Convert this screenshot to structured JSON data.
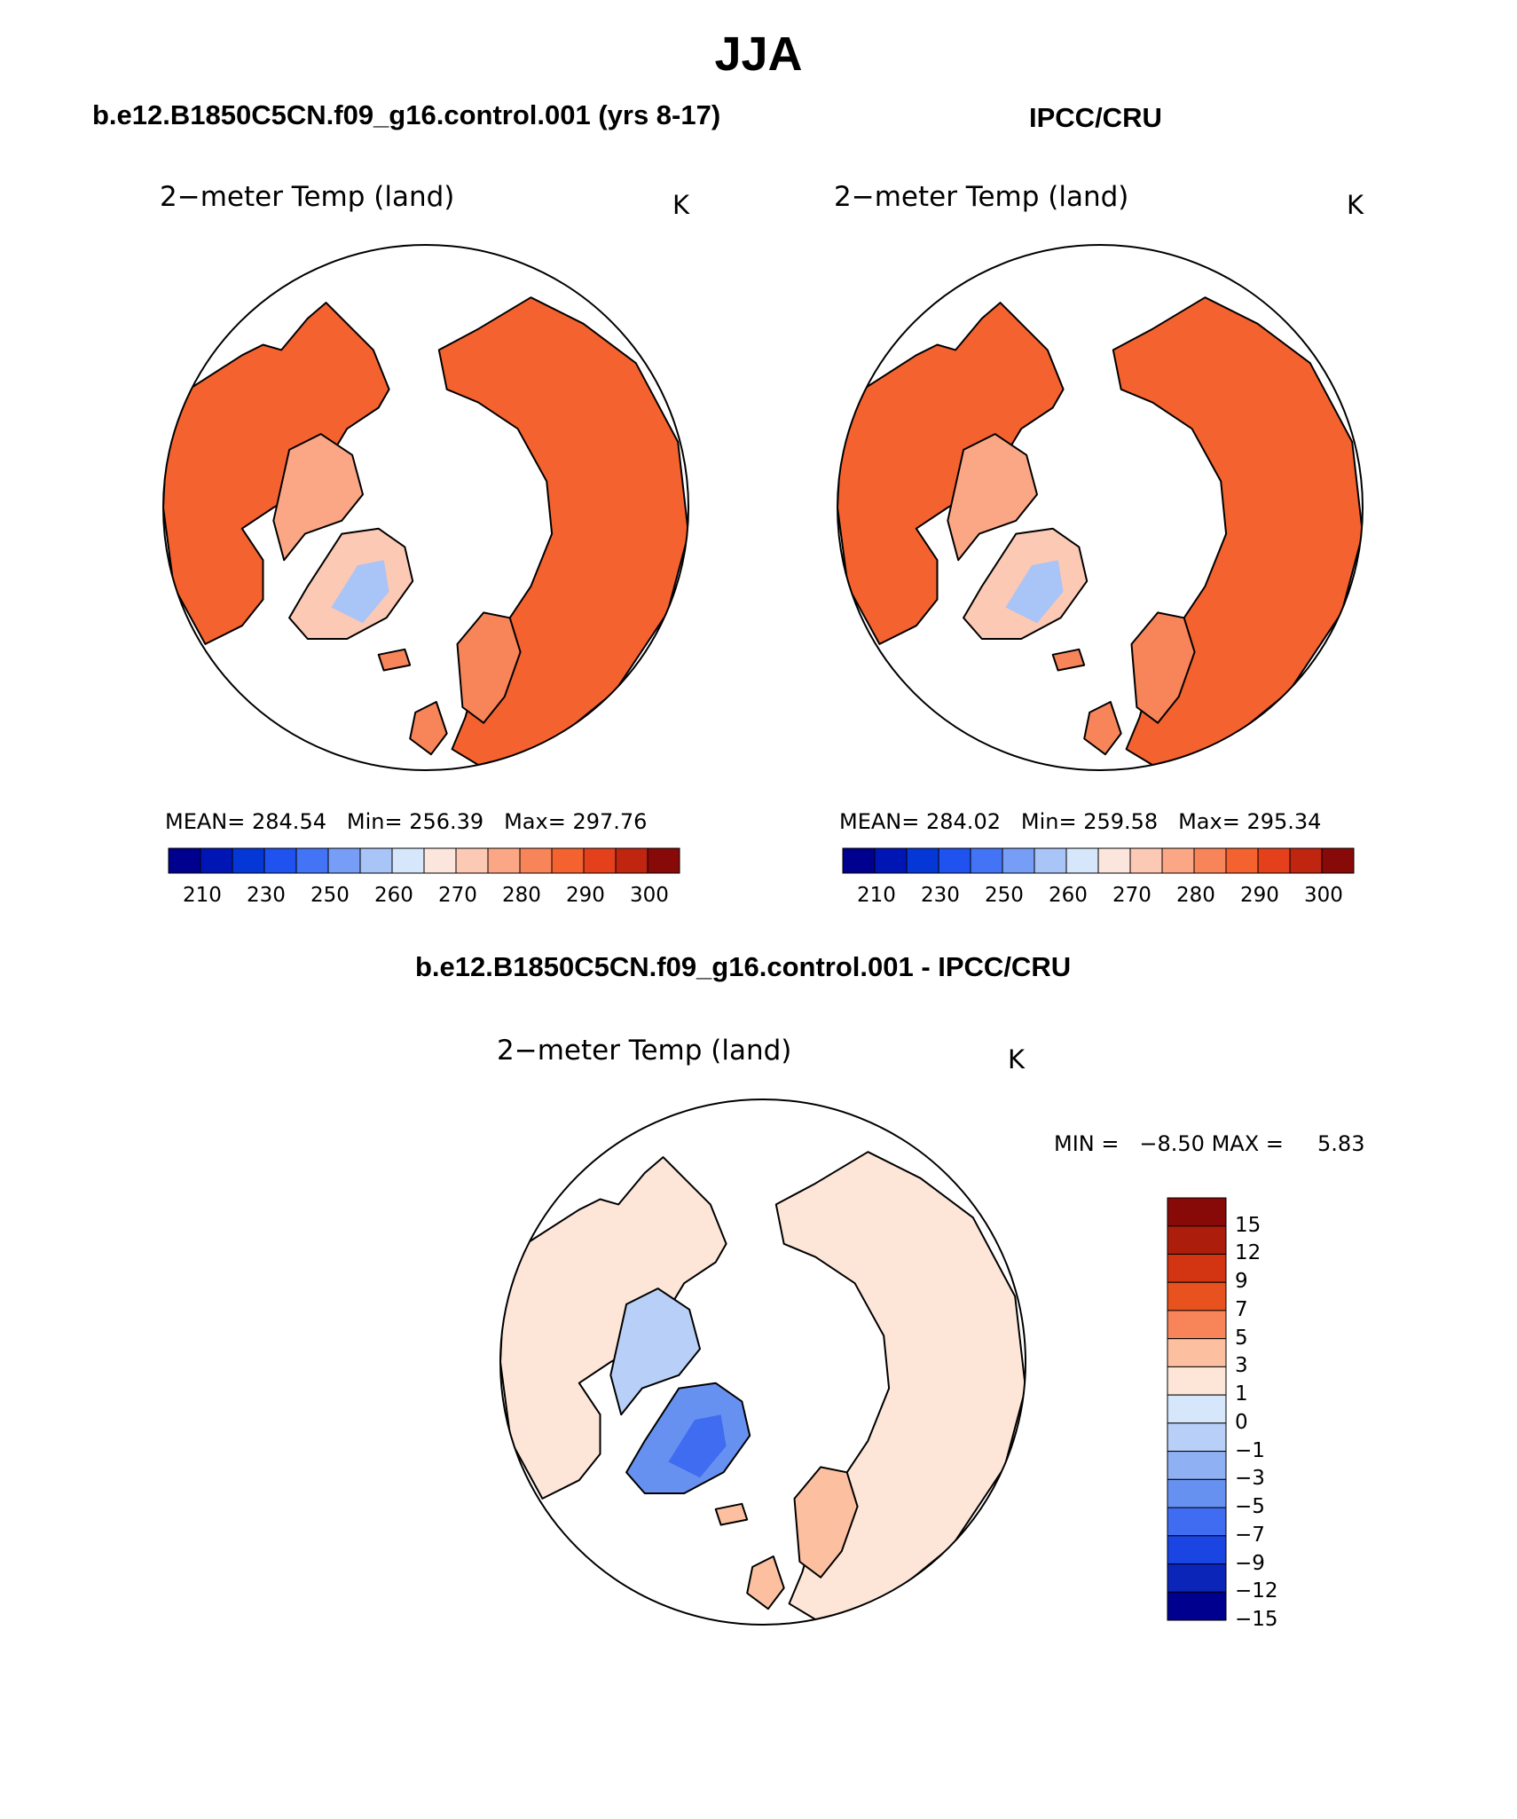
{
  "figure": {
    "title": "JJA",
    "colors": {
      "ocean": "#ffffff",
      "coast": "#000000",
      "ice": "#d8e6f5"
    }
  },
  "panels": [
    {
      "id": "model",
      "title": "b.e12.B1850C5CN.f09_g16.control.001 (yrs 8-17)",
      "variable": "2−meter Temp (land)",
      "units": "K",
      "stats": {
        "mean_label": "MEAN=",
        "mean": "284.54",
        "min_label": "Min=",
        "min": "256.39",
        "max_label": "Max=",
        "max": "297.76"
      }
    },
    {
      "id": "obs",
      "title": "IPCC/CRU",
      "variable": "2−meter Temp (land)",
      "units": "K",
      "stats": {
        "mean_label": "MEAN=",
        "mean": "284.02",
        "min_label": "Min=",
        "min": "259.58",
        "max_label": "Max=",
        "max": "295.34"
      }
    },
    {
      "id": "diff",
      "title": "b.e12.B1850C5CN.f09_g16.control.001 - IPCC/CRU",
      "variable": "2−meter Temp (land)",
      "units": "K",
      "stats": {
        "min_label": "MIN =",
        "min": "−8.50",
        "max_label": "MAX =",
        "max": "5.83"
      }
    }
  ],
  "chart_data": [
    {
      "type": "heatmap",
      "projection": "north polar stereographic",
      "title": "2−meter Temp (land) — b.e12.B1850C5CN.f09_g16.control.001 (yrs 8-17)",
      "units": "K",
      "colorbar_levels": [
        "210",
        "230",
        "250",
        "260",
        "270",
        "280",
        "290",
        "300"
      ],
      "colorbar_colors": [
        "#00008f",
        "#0016b4",
        "#0537d6",
        "#1f52ee",
        "#4274f5",
        "#769ef7",
        "#a9c4f7",
        "#d6e6fb",
        "#fbe6dd",
        "#fcc9b4",
        "#fba785",
        "#f8845a",
        "#f4622f",
        "#e3401b",
        "#c02510",
        "#880a08"
      ],
      "mean": 284.54,
      "min": 256.39,
      "max": 297.76
    },
    {
      "type": "heatmap",
      "projection": "north polar stereographic",
      "title": "2−meter Temp (land) — IPCC/CRU",
      "units": "K",
      "colorbar_levels": [
        "210",
        "230",
        "250",
        "260",
        "270",
        "280",
        "290",
        "300"
      ],
      "colorbar_colors": [
        "#00008f",
        "#0016b4",
        "#0537d6",
        "#1f52ee",
        "#4274f5",
        "#769ef7",
        "#a9c4f7",
        "#d6e6fb",
        "#fbe6dd",
        "#fcc9b4",
        "#fba785",
        "#f8845a",
        "#f4622f",
        "#e3401b",
        "#c02510",
        "#880a08"
      ],
      "mean": 284.02,
      "min": 259.58,
      "max": 295.34
    },
    {
      "type": "heatmap",
      "projection": "north polar stereographic",
      "title": "2−meter Temp (land) — difference",
      "units": "K",
      "colorbar_levels": [
        "15",
        "12",
        "9",
        "7",
        "5",
        "3",
        "1",
        "0",
        "−1",
        "−3",
        "−5",
        "−7",
        "−9",
        "−12",
        "−15"
      ],
      "colorbar_colors": [
        "#880a08",
        "#ad1d0b",
        "#d33412",
        "#e8521e",
        "#f8845a",
        "#fcc0a0",
        "#fde6d8",
        "#d6e6fb",
        "#b8d0f7",
        "#8fb1f4",
        "#6791f1",
        "#3f6cf0",
        "#1a45e2",
        "#0a25b8",
        "#00008f"
      ],
      "min": -8.5,
      "max": 5.83
    }
  ]
}
